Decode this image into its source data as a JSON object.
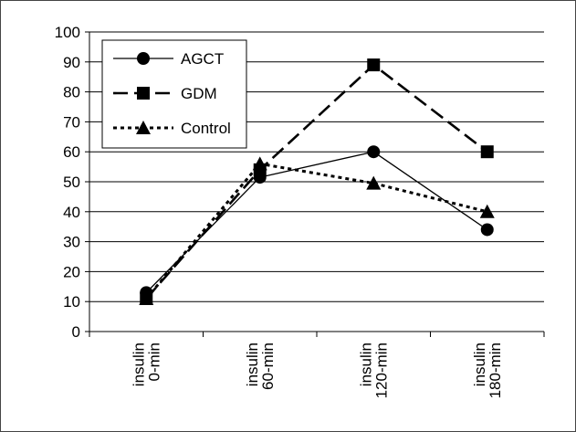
{
  "chart_data": {
    "type": "line",
    "categories": [
      "insulin 0-min",
      "insulin 60-min",
      "insulin 120-min",
      "insulin 180-min"
    ],
    "category_lines": [
      [
        "insulin",
        "0-min"
      ],
      [
        "insulin",
        "60-min"
      ],
      [
        "insulin",
        "120-min"
      ],
      [
        "insulin",
        "180-min"
      ]
    ],
    "series": [
      {
        "name": "AGCT",
        "values": [
          13,
          51.5,
          60,
          34
        ],
        "marker": "circle",
        "line": "solid-thin",
        "color": "#000000"
      },
      {
        "name": "GDM",
        "values": [
          11,
          54,
          89,
          60
        ],
        "marker": "square",
        "line": "long-dash",
        "color": "#000000"
      },
      {
        "name": "Control",
        "values": [
          11,
          56,
          49.5,
          40
        ],
        "marker": "triangle",
        "line": "dotted",
        "color": "#000000"
      }
    ],
    "ylim": [
      0,
      100
    ],
    "yticks": [
      0,
      10,
      20,
      30,
      40,
      50,
      60,
      70,
      80,
      90,
      100
    ],
    "grid": true,
    "legend_position": "top-left",
    "title": "",
    "xlabel": "",
    "ylabel": ""
  }
}
